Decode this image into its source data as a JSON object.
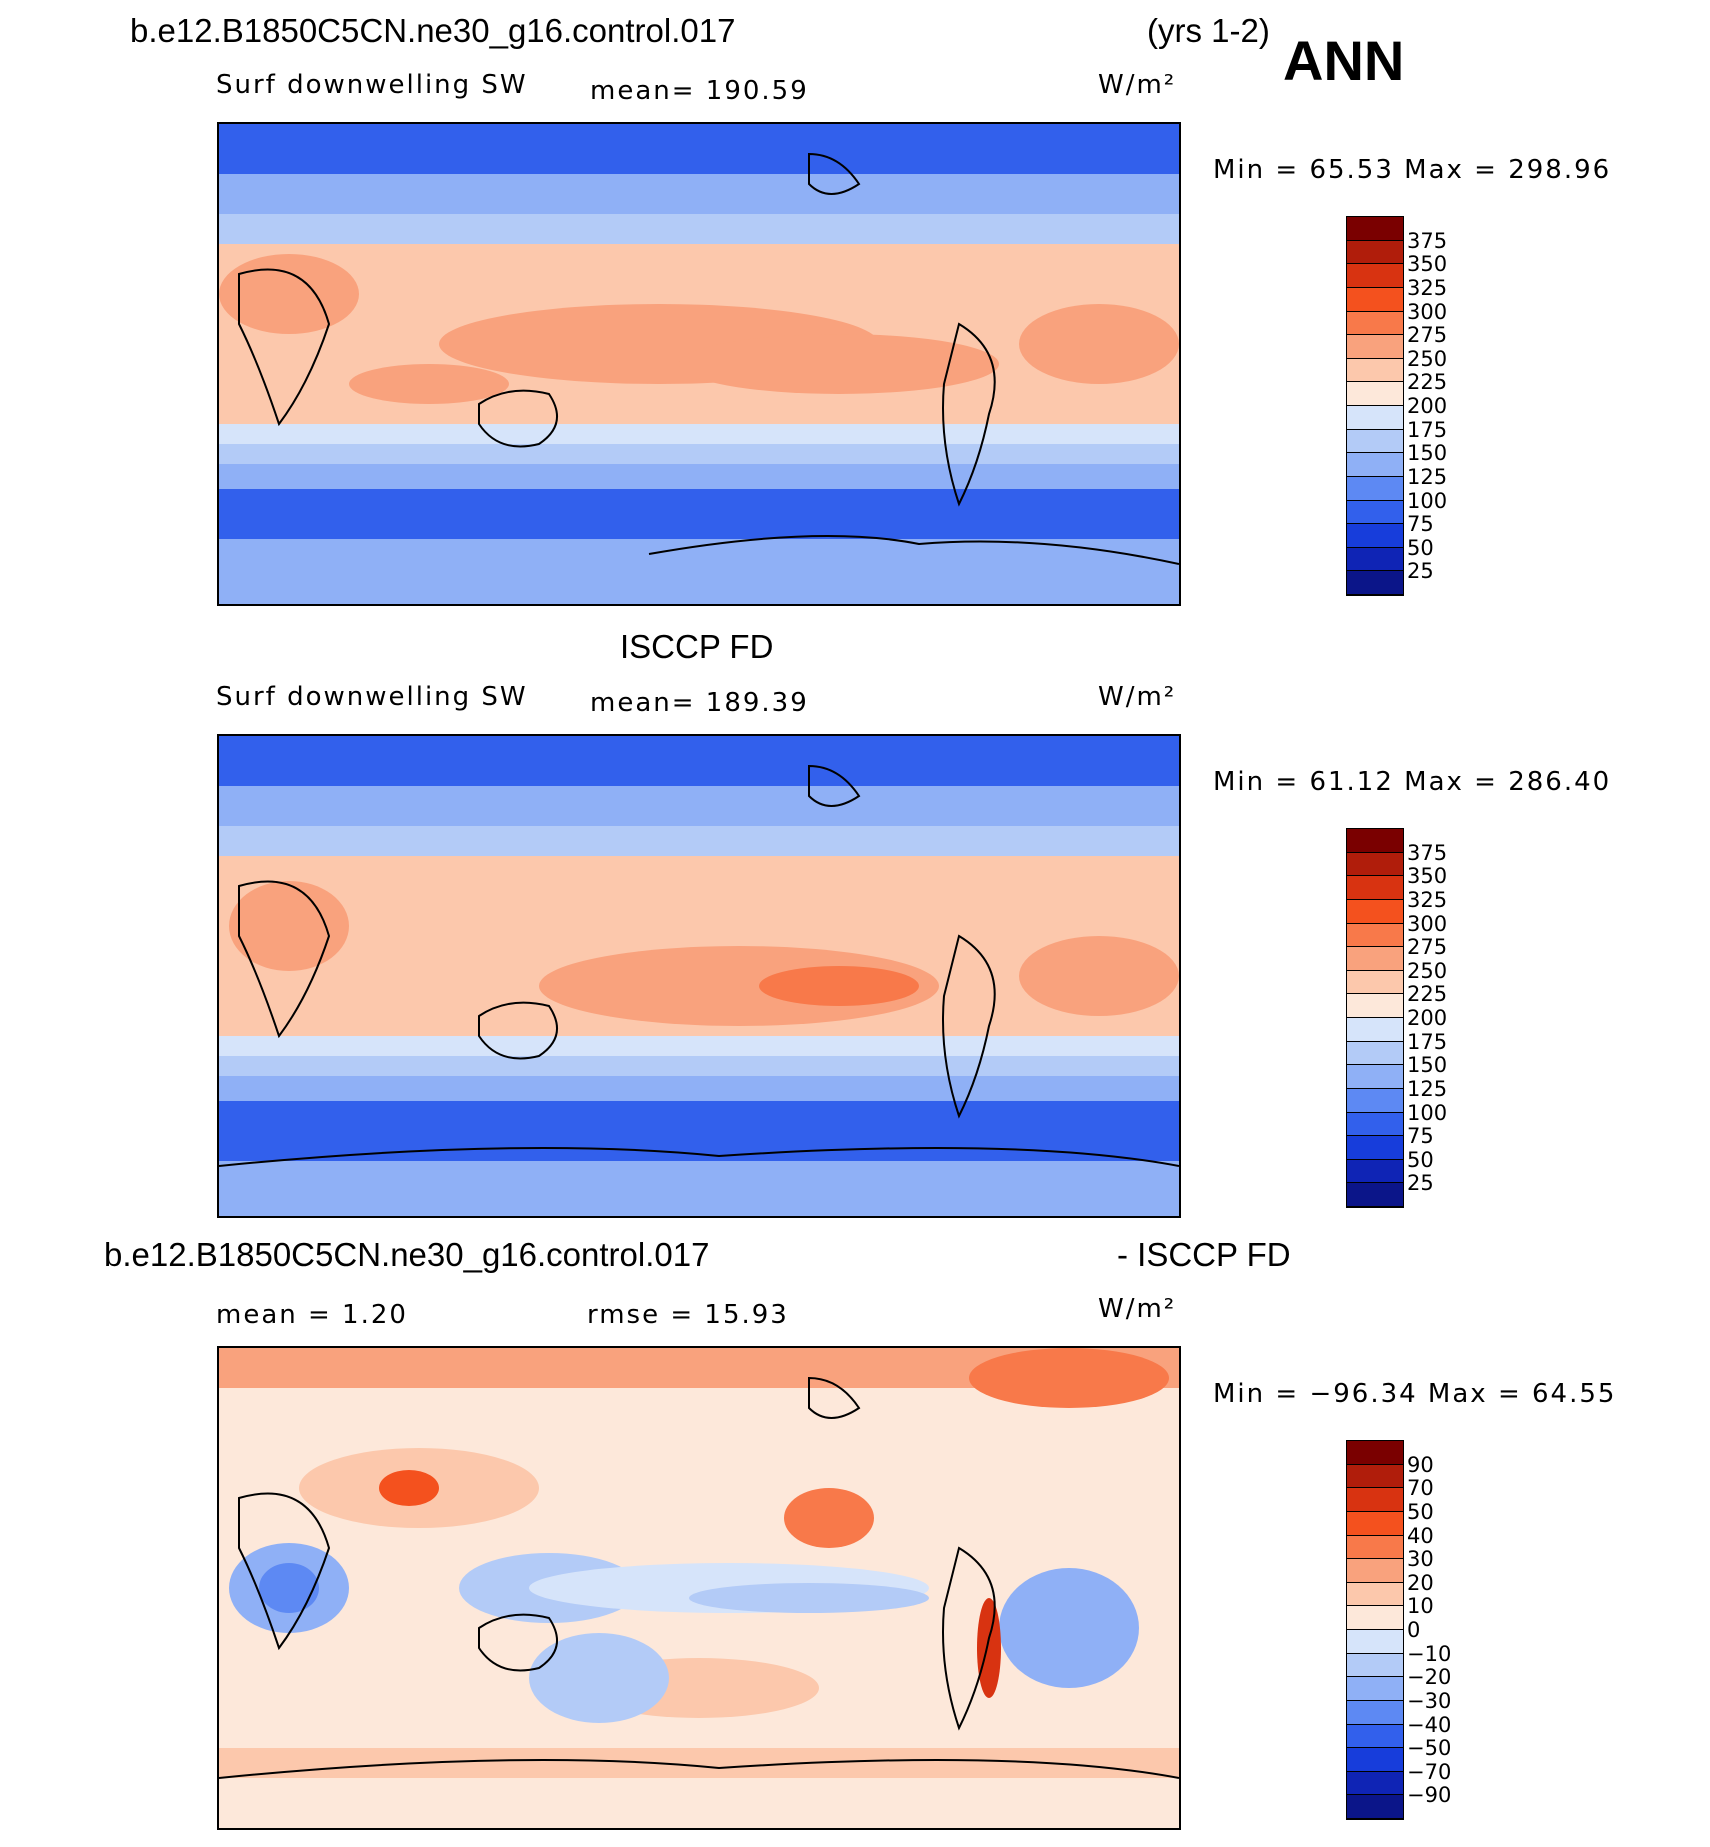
{
  "header": {
    "case_name": "b.e12.B1850C5CN.ne30_g16.control.017",
    "years": "(yrs 1-2)",
    "season": "ANN"
  },
  "panels": [
    {
      "id": "model",
      "title": "",
      "variable": "Surf downwelling SW",
      "mean_label": "mean=  190.59",
      "units": "W/m²",
      "minmax": "Min  =   65.53  Max  =  298.96",
      "colorbar": {
        "labels": [
          "375",
          "350",
          "325",
          "300",
          "275",
          "250",
          "225",
          "200",
          "175",
          "150",
          "125",
          "100",
          "75",
          "50",
          "25"
        ],
        "colors": [
          "#7a0000",
          "#b01d0b",
          "#d83311",
          "#f4511e",
          "#f8794a",
          "#f9a27d",
          "#fcc8ac",
          "#fde8da",
          "#d6e4fa",
          "#b3cbf7",
          "#8fb0f6",
          "#5d89f3",
          "#3260ec",
          "#173ddb",
          "#0f24b5",
          "#0b1589"
        ]
      }
    },
    {
      "id": "obs",
      "title": "ISCCP FD",
      "variable": "Surf downwelling SW",
      "mean_label": "mean=  189.39",
      "units": "W/m²",
      "minmax": "Min  =   61.12  Max  =  286.40",
      "colorbar": {
        "labels": [
          "375",
          "350",
          "325",
          "300",
          "275",
          "250",
          "225",
          "200",
          "175",
          "150",
          "125",
          "100",
          "75",
          "50",
          "25"
        ],
        "colors": [
          "#7a0000",
          "#b01d0b",
          "#d83311",
          "#f4511e",
          "#f8794a",
          "#f9a27d",
          "#fcc8ac",
          "#fde8da",
          "#d6e4fa",
          "#b3cbf7",
          "#8fb0f6",
          "#5d89f3",
          "#3260ec",
          "#173ddb",
          "#0f24b5",
          "#0b1589"
        ]
      }
    },
    {
      "id": "diff",
      "title_left": "b.e12.B1850C5CN.ne30_g16.control.017",
      "title_right": "- ISCCP FD",
      "mean_label": "mean  =    1.20",
      "rmse_label": "rmse  =    15.93",
      "units": "W/m²",
      "minmax": "Min  =  −96.34  Max  =    64.55",
      "colorbar": {
        "labels": [
          "90",
          "70",
          "50",
          "40",
          "30",
          "20",
          "10",
          "0",
          "−10",
          "−20",
          "−30",
          "−40",
          "−50",
          "−70",
          "−90"
        ],
        "colors": [
          "#7a0000",
          "#b01d0b",
          "#d83311",
          "#f4511e",
          "#f8794a",
          "#f9a27d",
          "#fcc8ac",
          "#fde8da",
          "#d6e4fa",
          "#b3cbf7",
          "#8fb0f6",
          "#5d89f3",
          "#3260ec",
          "#173ddb",
          "#0f24b5",
          "#0b1589"
        ]
      }
    }
  ]
}
